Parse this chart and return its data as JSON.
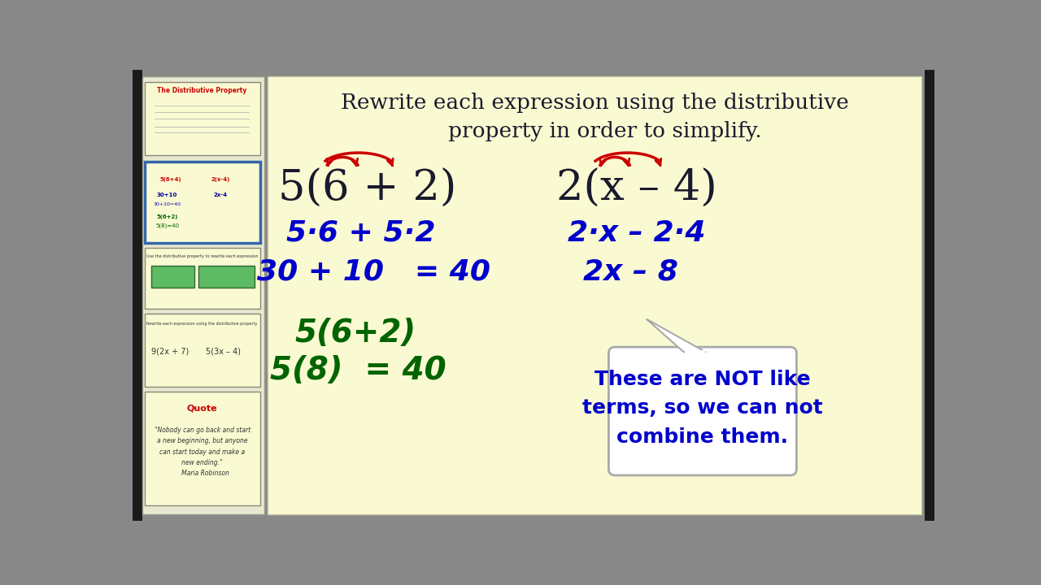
{
  "bg_color": "#FAFAD2",
  "sidebar_bg": "#E8E8D0",
  "outer_bg": "#888888",
  "title_text": "Rewrite each expression using the distributive\n   property in order to simplify.",
  "title_color": "#1a1a2e",
  "title_fontsize": 19,
  "expr1_text": "5(6 + 2)",
  "expr2_text": "2(x – 4)",
  "expr_color": "#1a1a2e",
  "expr_fontsize": 38,
  "step1_left": "5·6 + 5·2",
  "step1_right": "2·x – 2·4",
  "step1_color": "#0000CC",
  "step1_fontsize": 26,
  "step2_left": "30 + 10   = 40",
  "step2_right": "2x – 8",
  "step2_color": "#0000CC",
  "step2_fontsize": 26,
  "alt1_line1": "5(6+2)",
  "alt1_line2": "5(8)  = 40",
  "alt_color": "#006400",
  "alt_fontsize": 28,
  "bubble_text": "These are NOT like\nterms, so we can not\ncombine them.",
  "bubble_color": "#0000CC",
  "bubble_bg": "#FFFFFF",
  "bubble_border": "#AAAAAA",
  "bubble_fontsize": 18,
  "arrow_color": "#CC0000",
  "slide1_title_color": "#CC0000",
  "green_rect_color": "#5DBB63",
  "quote_title_color": "#CC0000"
}
